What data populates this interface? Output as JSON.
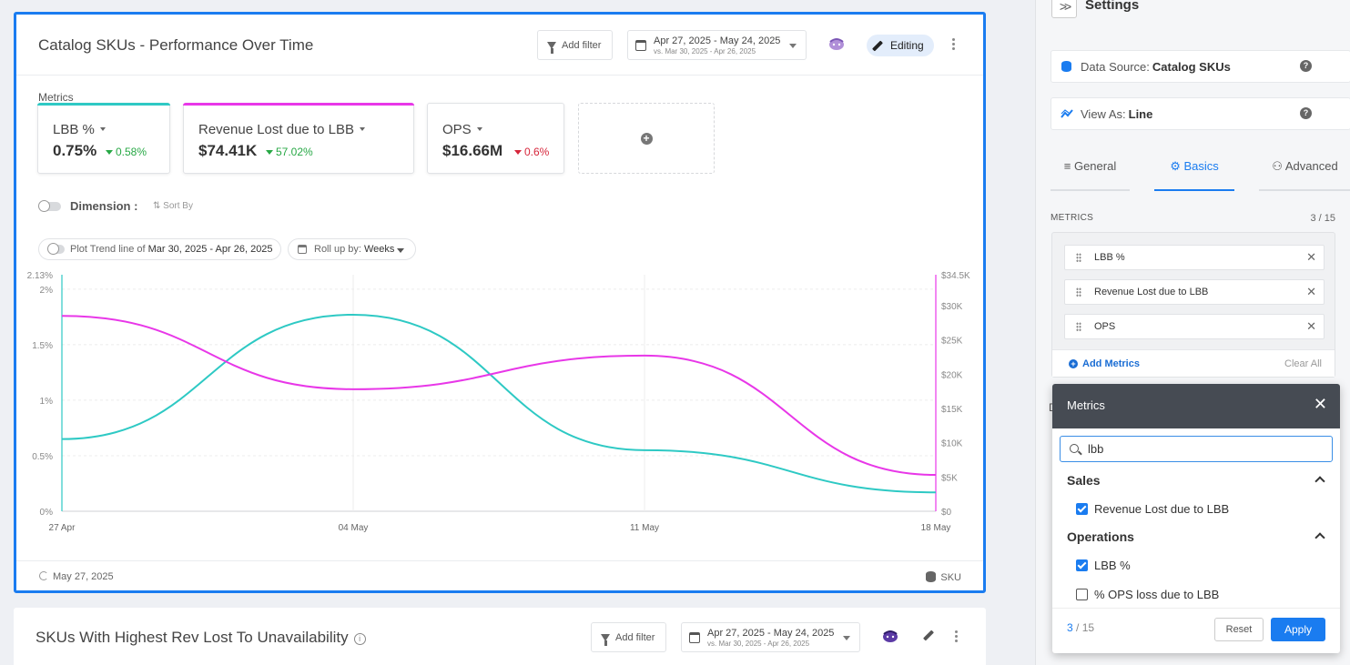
{
  "widget": {
    "title": "Catalog SKUs - Performance Over Time",
    "add_filter": "Add filter",
    "date_range": "Apr 27, 2025 - May 24, 2025",
    "date_vs": "vs. Mar 30, 2025 - Apr 26, 2025",
    "editing_label": "Editing",
    "metrics_label": "Metrics",
    "metric_cards": [
      {
        "name": "LBB %",
        "value": "0.75%",
        "change": "0.58%",
        "color": "#2ec9c4",
        "change_color": "#27a845"
      },
      {
        "name": "Revenue Lost due to LBB",
        "value": "$74.41K",
        "change": "57.02%",
        "color": "#e837e8",
        "change_color": "#27a845"
      },
      {
        "name": "OPS",
        "value": "$16.66M",
        "change": "0.6%",
        "color": "#ffffff",
        "change_color": "#d6263b"
      }
    ],
    "dimension_label": "Dimension :",
    "sort_by": "Sort By",
    "trend_label": "Plot Trend line of",
    "trend_range": "Mar 30, 2025 - Apr 26, 2025",
    "rollup_label": "Roll up by:",
    "rollup_value": "Weeks",
    "updated": "May 27, 2025",
    "footer_source": "SKU"
  },
  "chart_data": {
    "type": "line",
    "x": [
      "27 Apr",
      "04 May",
      "11 May",
      "18 May"
    ],
    "series": [
      {
        "axis": "left",
        "color": "#2ec9c4",
        "values": [
          0.65,
          1.77,
          0.55,
          0.17
        ]
      },
      {
        "axis": "right",
        "color": "#e837e8",
        "values": [
          28500,
          17800,
          22700,
          5300
        ]
      }
    ],
    "y_left": {
      "ticks": [
        "0%",
        "0.5%",
        "1%",
        "1.5%",
        "2%"
      ],
      "max_label": "2.13%",
      "max": 2.13
    },
    "y_right": {
      "ticks": [
        "$0",
        "$5K",
        "$10K",
        "$15K",
        "$20K",
        "$25K",
        "$30K"
      ],
      "max_label": "$34.5K",
      "max": 34500
    },
    "grid": true
  },
  "widget2": {
    "title": "SKUs With Highest Rev Lost To Unavailability",
    "add_filter": "Add filter",
    "date_range": "Apr 27, 2025 - May 24, 2025",
    "date_vs": "vs. Mar 30, 2025 - Apr 26, 2025"
  },
  "settings": {
    "title": "Settings",
    "data_source_label": "Data Source:",
    "data_source_value": "Catalog SKUs",
    "view_as_label": "View As:",
    "view_as_value": "Line",
    "tabs": [
      "General",
      "Basics",
      "Advanced"
    ],
    "metrics_heading": "METRICS",
    "metrics_count": "3 / 15",
    "metric_items": [
      "LBB %",
      "Revenue Lost due to LBB",
      "OPS"
    ],
    "add_metrics": "Add Metrics",
    "clear_all": "Clear All",
    "partial_label": "D"
  },
  "popup": {
    "title": "Metrics",
    "search_value": "lbb",
    "groups": [
      {
        "label": "Sales",
        "options": [
          {
            "label": "Revenue Lost due to LBB",
            "checked": true
          }
        ]
      },
      {
        "label": "Operations",
        "options": [
          {
            "label": "LBB %",
            "checked": true
          },
          {
            "label": "% OPS loss due to LBB",
            "checked": false
          }
        ]
      }
    ],
    "count_selected": "3",
    "count_total": "/ 15",
    "reset": "Reset",
    "apply": "Apply"
  }
}
